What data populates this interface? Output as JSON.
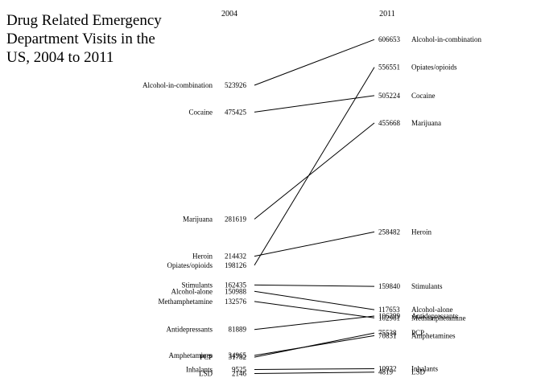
{
  "chart_data": {
    "type": "slope",
    "title": "Drug Related Emergency\n Department Visits in the\n US, 2004 to 2011",
    "columns": [
      "2004",
      "2011"
    ],
    "ylim": [
      0,
      620000
    ],
    "series": [
      {
        "name": "Alcohol-in-combination",
        "values": [
          523926,
          606653
        ]
      },
      {
        "name": "Cocaine",
        "values": [
          475425,
          505224
        ]
      },
      {
        "name": "Marijuana",
        "values": [
          281619,
          455668
        ]
      },
      {
        "name": "Heroin",
        "values": [
          214432,
          258482
        ]
      },
      {
        "name": "Opiates/opioids",
        "values": [
          198126,
          556551
        ]
      },
      {
        "name": "Stimulants",
        "values": [
          162435,
          159840
        ]
      },
      {
        "name": "Alcohol-alone",
        "values": [
          150988,
          117653
        ]
      },
      {
        "name": "Methamphetamine",
        "values": [
          132576,
          102961
        ]
      },
      {
        "name": "Antidepressants",
        "values": [
          81889,
          106299
        ]
      },
      {
        "name": "Amphetamines",
        "values": [
          34965,
          70831
        ]
      },
      {
        "name": "PCP",
        "values": [
          31782,
          75538
        ]
      },
      {
        "name": "Inhalants",
        "values": [
          9525,
          10932
        ]
      },
      {
        "name": "LSD",
        "values": [
          2146,
          4819
        ]
      }
    ]
  }
}
